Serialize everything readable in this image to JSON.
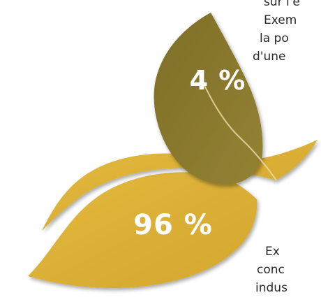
{
  "chart_data": {
    "type": "pie",
    "title": "",
    "categories": [
      "4 %",
      "96 %"
    ],
    "values": [
      4,
      96
    ],
    "labels": [
      "4 %",
      "96 %"
    ],
    "colors": [
      "#8b7a2e",
      "#ddb23a"
    ]
  },
  "upper_text": [
    "sur l'e",
    "Exem",
    "la po",
    "d'une"
  ],
  "lower_text": [
    "Ex",
    "conc",
    "indus"
  ]
}
